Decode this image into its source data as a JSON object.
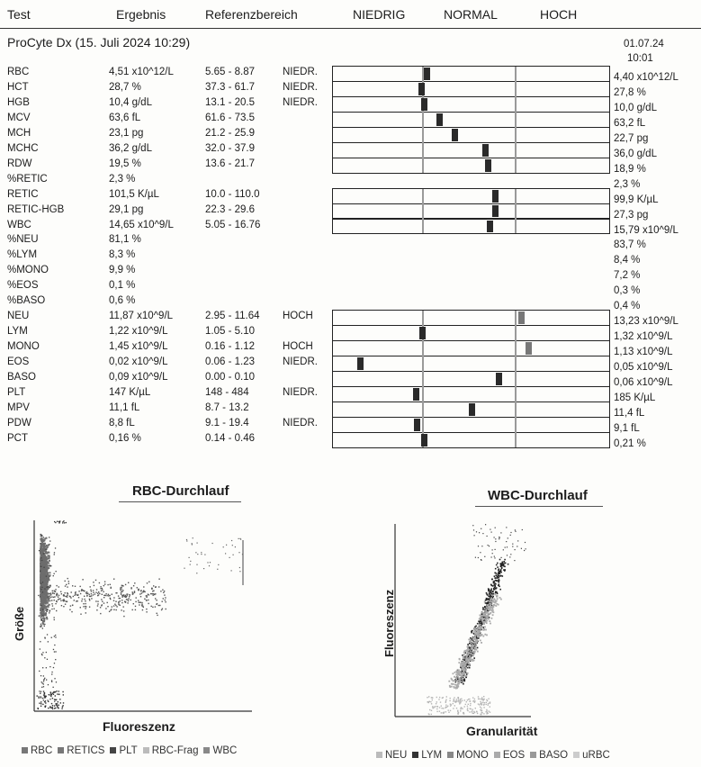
{
  "header": {
    "test": "Test",
    "ergebnis": "Ergebnis",
    "referenz": "Referenzbereich",
    "niedrig": "NIEDRIG",
    "normal": "NORMAL",
    "hoch": "HOCH"
  },
  "instrument": "ProCyte Dx (15. Juli 2024 10:29)",
  "previous": {
    "date": "01.07.24",
    "time": "10:01"
  },
  "rows": [
    {
      "test": "RBC",
      "result": "4,51 x10^12/L",
      "ref": "5.65 - 8.87",
      "flag": "NIEDR.",
      "prev": "4,40 x10^12/L",
      "pos": 0.34,
      "bar": true
    },
    {
      "test": "HCT",
      "result": "28,7 %",
      "ref": "37.3 - 61.7",
      "flag": "NIEDR.",
      "prev": "27,8 %",
      "pos": 0.32,
      "bar": true
    },
    {
      "test": "HGB",
      "result": "10,4 g/dL",
      "ref": "13.1 - 20.5",
      "flag": "NIEDR.",
      "prev": "10,0 g/dL",
      "pos": 0.33,
      "bar": true
    },
    {
      "test": "MCV",
      "result": "63,6 fL",
      "ref": "61.6 - 73.5",
      "flag": "",
      "prev": "63,2 fL",
      "pos": 0.385,
      "bar": true
    },
    {
      "test": "MCH",
      "result": "23,1 pg",
      "ref": "21.2 - 25.9",
      "flag": "",
      "prev": "22,7 pg",
      "pos": 0.44,
      "bar": true
    },
    {
      "test": "MCHC",
      "result": "36,2 g/dL",
      "ref": "32.0 - 37.9",
      "flag": "",
      "prev": "36,0 g/dL",
      "pos": 0.55,
      "bar": true
    },
    {
      "test": "RDW",
      "result": "19,5 %",
      "ref": "13.6 - 21.7",
      "flag": "",
      "prev": "18,9 %",
      "pos": 0.56,
      "bar": true
    },
    {
      "test": "%RETIC",
      "result": "2,3 %",
      "ref": "",
      "flag": "",
      "prev": "2,3 %",
      "pos": null,
      "bar": false
    },
    {
      "test": "RETIC",
      "result": "101,5 K/µL",
      "ref": "10.0 - 110.0",
      "flag": "",
      "prev": "99,9 K/µL",
      "pos": 0.585,
      "bar": true
    },
    {
      "test": "RETIC-HGB",
      "result": "29,1 pg",
      "ref": "22.3 - 29.6",
      "flag": "",
      "prev": "27,3 pg",
      "pos": 0.585,
      "bar": true
    },
    {
      "test": "WBC",
      "result": "14,65 x10^9/L",
      "ref": "5.05 - 16.76",
      "flag": "",
      "prev": "15,79 x10^9/L",
      "pos": 0.565,
      "bar": true
    },
    {
      "test": "%NEU",
      "result": "81,1 %",
      "ref": "",
      "flag": "",
      "prev": "83,7 %",
      "pos": null,
      "bar": false
    },
    {
      "test": "%LYM",
      "result": "8,3 %",
      "ref": "",
      "flag": "",
      "prev": "8,4 %",
      "pos": null,
      "bar": false
    },
    {
      "test": "%MONO",
      "result": "9,9 %",
      "ref": "",
      "flag": "",
      "prev": "7,2 %",
      "pos": null,
      "bar": false
    },
    {
      "test": "%EOS",
      "result": "0,1 %",
      "ref": "",
      "flag": "",
      "prev": "0,3 %",
      "pos": null,
      "bar": false
    },
    {
      "test": "%BASO",
      "result": "0,6 %",
      "ref": "",
      "flag": "",
      "prev": "0,4 %",
      "pos": null,
      "bar": false
    },
    {
      "test": "NEU",
      "result": "11,87 x10^9/L",
      "ref": "2.95 - 11.64",
      "flag": "HOCH",
      "prev": "13,23 x10^9/L",
      "pos": 0.68,
      "bar": true,
      "hi": true
    },
    {
      "test": "LYM",
      "result": "1,22 x10^9/L",
      "ref": "1.05 - 5.10",
      "flag": "",
      "prev": "1,32 x10^9/L",
      "pos": 0.325,
      "bar": true
    },
    {
      "test": "MONO",
      "result": "1,45 x10^9/L",
      "ref": "0.16 - 1.12",
      "flag": "HOCH",
      "prev": "1,13 x10^9/L",
      "pos": 0.705,
      "bar": true,
      "hi": true
    },
    {
      "test": "EOS",
      "result": "0,02 x10^9/L",
      "ref": "0.06 - 1.23",
      "flag": "NIEDR.",
      "prev": "0,05 x10^9/L",
      "pos": 0.1,
      "bar": true
    },
    {
      "test": "BASO",
      "result": "0,09 x10^9/L",
      "ref": "0.00 - 0.10",
      "flag": "",
      "prev": "0,06 x10^9/L",
      "pos": 0.6,
      "bar": true
    },
    {
      "test": "PLT",
      "result": "147 K/µL",
      "ref": "148 - 484",
      "flag": "NIEDR.",
      "prev": "185 K/µL",
      "pos": 0.3,
      "bar": true
    },
    {
      "test": "MPV",
      "result": "11,1 fL",
      "ref": "8.7 - 13.2",
      "flag": "",
      "prev": "11,4 fL",
      "pos": 0.5,
      "bar": true
    },
    {
      "test": "PDW",
      "result": "8,8 fL",
      "ref": "9.1 - 19.4",
      "flag": "NIEDR.",
      "prev": "9,1 fL",
      "pos": 0.305,
      "bar": true
    },
    {
      "test": "PCT",
      "result": "0,16 %",
      "ref": "0.14 - 0.46",
      "flag": "",
      "prev": "0,21 %",
      "pos": 0.33,
      "bar": true
    }
  ],
  "rbc_plot": {
    "title": "RBC-Durchlauf",
    "xlabel": "Fluoreszenz",
    "ylabel": "Größe",
    "legend": [
      "RBC",
      "RETICS",
      "PLT",
      "RBC-Frag",
      "WBC"
    ],
    "legend_colors": [
      "#777777",
      "#777777",
      "#444444",
      "#bbbbbb",
      "#888888"
    ]
  },
  "wbc_plot": {
    "title": "WBC-Durchlauf",
    "xlabel": "Granularität",
    "ylabel": "Fluoreszenz",
    "legend": [
      "NEU",
      "LYM",
      "MONO",
      "EOS",
      "BASO",
      "uRBC"
    ],
    "legend_colors": [
      "#bbbbbb",
      "#333333",
      "#888888",
      "#aaaaaa",
      "#999999",
      "#cccccc"
    ]
  }
}
